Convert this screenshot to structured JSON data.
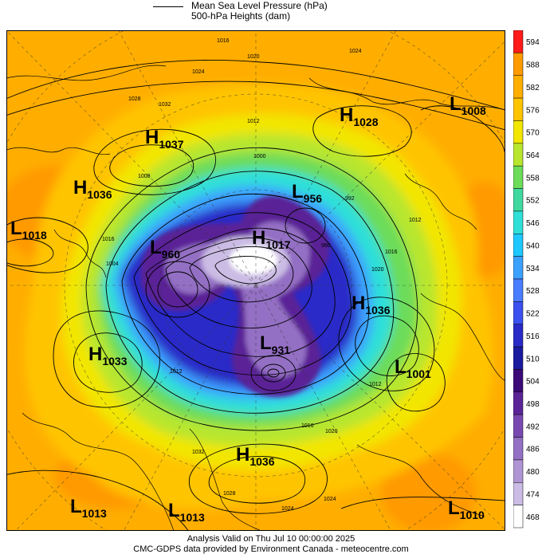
{
  "legend": {
    "line_label": "Mean Sea Level Pressure (hPa)",
    "fill_label": "500-hPa Heights (dam)"
  },
  "colorbar": {
    "levels": [
      "594",
      "588",
      "582",
      "576",
      "570",
      "564",
      "558",
      "552",
      "546",
      "540",
      "534",
      "528",
      "522",
      "516",
      "510",
      "504",
      "498",
      "492",
      "486",
      "480",
      "474",
      "468"
    ],
    "colors": [
      "#ff1a1a",
      "#ff9a00",
      "#ffae00",
      "#ffc400",
      "#f2e600",
      "#b8e62e",
      "#6cdc5a",
      "#3fd9a0",
      "#2ee0d8",
      "#1ec8ff",
      "#3ca0ff",
      "#4a7cff",
      "#3c50f0",
      "#2a2ac8",
      "#1a1aa0",
      "#3c0a78",
      "#5a2496",
      "#7848b0",
      "#9470c4",
      "#b094d4",
      "#cabce4",
      "#ffffff"
    ]
  },
  "pressure_centers": [
    {
      "type": "H",
      "value": "1037"
    },
    {
      "type": "H",
      "value": "1036"
    },
    {
      "type": "L",
      "value": "1018"
    },
    {
      "type": "H",
      "value": "1028"
    },
    {
      "type": "L",
      "value": "1008"
    },
    {
      "type": "L",
      "value": "956"
    },
    {
      "type": "L",
      "value": "960"
    },
    {
      "type": "H",
      "value": "1017"
    },
    {
      "type": "H",
      "value": "1036"
    },
    {
      "type": "H",
      "value": "1033"
    },
    {
      "type": "L",
      "value": "931"
    },
    {
      "type": "L",
      "value": "1001"
    },
    {
      "type": "H",
      "value": "1036"
    },
    {
      "type": "L",
      "value": "1013"
    },
    {
      "type": "L",
      "value": "1013"
    },
    {
      "type": "L",
      "value": "1010"
    }
  ],
  "isobar_labels": [
    "1016",
    "1020",
    "1024",
    "1028",
    "1032",
    "1012",
    "1000",
    "992",
    "980",
    "1016",
    "1012",
    "1020",
    "1024",
    "1008",
    "1004",
    "1012",
    "1016",
    "1020",
    "1024",
    "1028",
    "1032",
    "1016",
    "1012",
    "1024"
  ],
  "footer": {
    "line1": "Analysis Valid on Thu Jul 10 00:00:00 2025",
    "line2": "CMC-GDPS data provided by Environment Canada - meteocentre.com"
  }
}
